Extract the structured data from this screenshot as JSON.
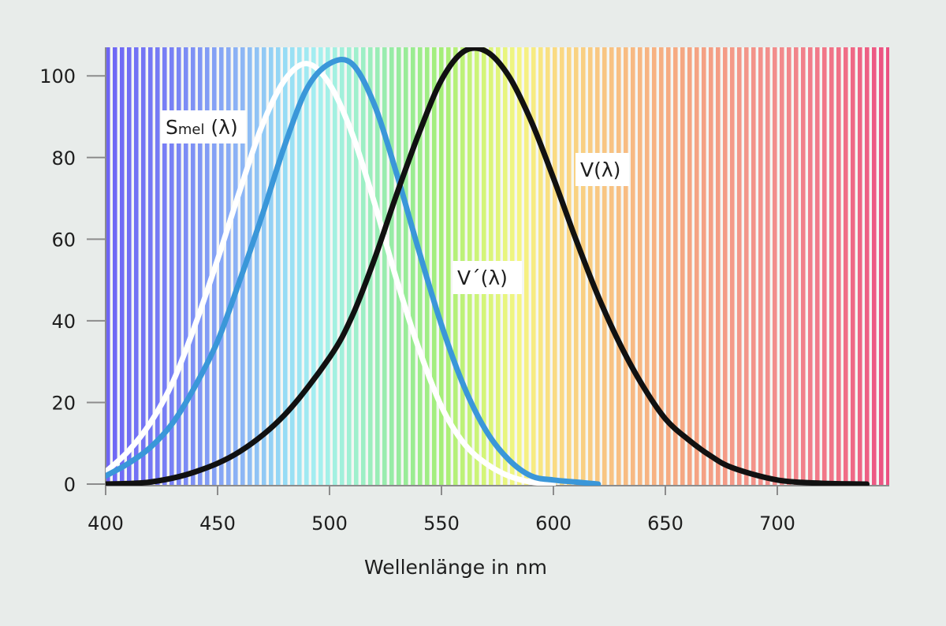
{
  "chart_data": {
    "type": "line",
    "title": "",
    "xlabel": "Wellenlänge in nm",
    "ylabel": "",
    "xlim": [
      400,
      750
    ],
    "ylim": [
      0,
      107
    ],
    "xticks": [
      400,
      450,
      500,
      550,
      600,
      650,
      700
    ],
    "yticks": [
      0,
      20,
      40,
      60,
      80,
      100
    ],
    "grid": false,
    "legend": "none",
    "background": "visible spectrum (violet to red vertical stripes)",
    "series": [
      {
        "label_main": "S",
        "label_sub": "mel",
        "label_rest": " (λ)",
        "color": "#ffffff",
        "x": [
          400,
          410,
          420,
          430,
          440,
          450,
          460,
          470,
          480,
          490,
          500,
          510,
          520,
          530,
          540,
          550,
          560,
          570,
          580,
          590,
          600
        ],
        "values": [
          3,
          8,
          15,
          25,
          39,
          55,
          72,
          88,
          99,
          103,
          98,
          86,
          69,
          50,
          33,
          19,
          10,
          5,
          2,
          0.5,
          0
        ]
      },
      {
        "label_main": "V´(λ)",
        "label_sub": "",
        "label_rest": "",
        "color": "#3a97d9",
        "x": [
          400,
          410,
          420,
          430,
          440,
          450,
          460,
          470,
          480,
          490,
          500,
          510,
          520,
          530,
          540,
          550,
          560,
          570,
          580,
          590,
          600,
          610,
          620
        ],
        "values": [
          2,
          5,
          9,
          15,
          24,
          35,
          50,
          66,
          83,
          97,
          103,
          103,
          93,
          76,
          57,
          39,
          24,
          13,
          6,
          2,
          1,
          0.5,
          0
        ]
      },
      {
        "label_main": "V(λ)",
        "label_sub": "",
        "label_rest": "",
        "color": "#111111",
        "x": [
          400,
          420,
          440,
          460,
          480,
          500,
          510,
          520,
          530,
          540,
          550,
          560,
          570,
          580,
          590,
          600,
          610,
          620,
          630,
          640,
          650,
          660,
          670,
          680,
          700,
          720,
          740
        ],
        "values": [
          0,
          0.5,
          3,
          8,
          17,
          31,
          41,
          55,
          71,
          86,
          99,
          106,
          106,
          100,
          89,
          75,
          60,
          46,
          34,
          24,
          16,
          11,
          7,
          4,
          1,
          0.2,
          0
        ]
      }
    ]
  }
}
